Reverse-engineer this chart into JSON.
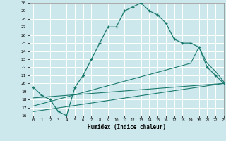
{
  "xlabel": "Humidex (Indice chaleur)",
  "bg_color": "#cde8ec",
  "grid_color": "#ffffff",
  "line_color": "#1a7a6e",
  "ylim": [
    16,
    30
  ],
  "xlim": [
    -0.5,
    23
  ],
  "yticks": [
    16,
    17,
    18,
    19,
    20,
    21,
    22,
    23,
    24,
    25,
    26,
    27,
    28,
    29,
    30
  ],
  "xticks": [
    0,
    1,
    2,
    3,
    4,
    5,
    6,
    7,
    8,
    9,
    10,
    11,
    12,
    13,
    14,
    15,
    16,
    17,
    18,
    19,
    20,
    21,
    22,
    23
  ],
  "line1_x": [
    0,
    1,
    2,
    3,
    4,
    5,
    6,
    7,
    8,
    9,
    10,
    11,
    12,
    13,
    14,
    15,
    16,
    17,
    18,
    19,
    20,
    21,
    22,
    23
  ],
  "line1_y": [
    19.5,
    18.5,
    18.0,
    16.5,
    16.0,
    19.5,
    21.0,
    23.0,
    25.0,
    27.0,
    27.0,
    29.0,
    29.5,
    30.0,
    29.0,
    28.5,
    27.5,
    25.5,
    25.0,
    25.0,
    24.5,
    22.0,
    21.0,
    20.0
  ],
  "line2_x": [
    0,
    23
  ],
  "line2_y": [
    18.2,
    20.0
  ],
  "line3_x": [
    0,
    19,
    20,
    21,
    22,
    23
  ],
  "line3_y": [
    17.2,
    22.5,
    24.5,
    22.5,
    21.5,
    20.2
  ],
  "line4_x": [
    0,
    23
  ],
  "line4_y": [
    16.5,
    20.0
  ]
}
